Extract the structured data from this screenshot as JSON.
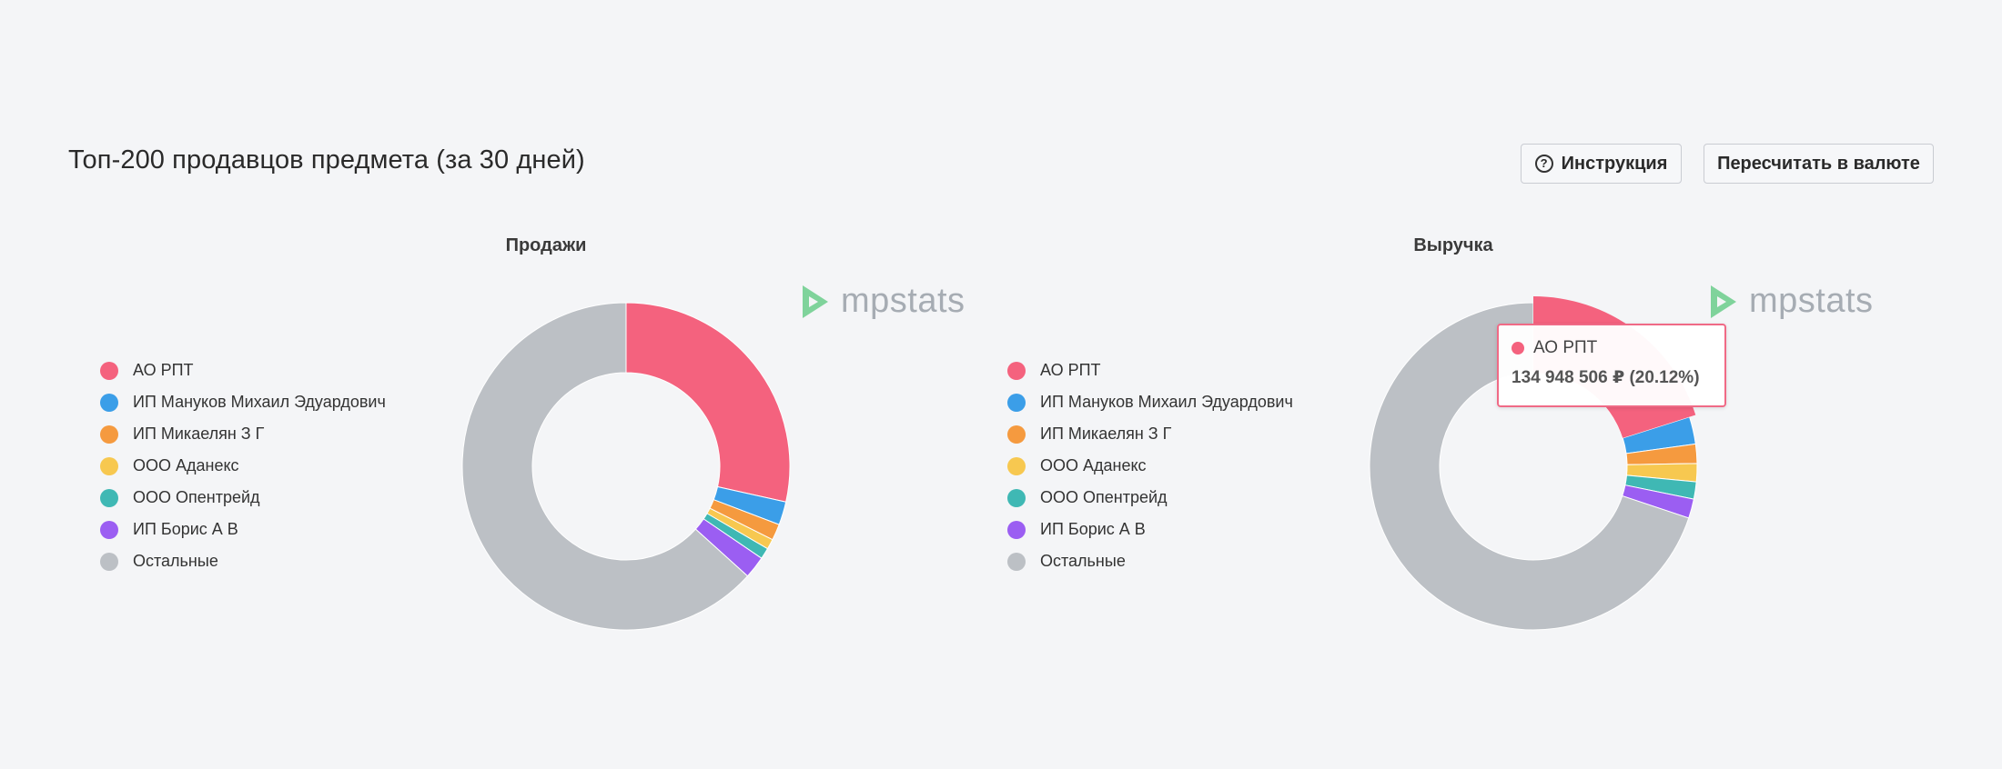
{
  "header": {
    "title": "Топ-200 продавцов предмета (за 30 дней)",
    "help_label": "Инструкция",
    "currency_label": "Пересчитать в валюте",
    "help_glyph": "?"
  },
  "watermark": "mpstats",
  "colors": {
    "ao_rpt": "#f4627e",
    "manukov": "#3b9ee8",
    "mikaelyan": "#f59a3f",
    "adaneks": "#f7c850",
    "opentreid": "#3fb8b4",
    "boris": "#9b5ef2",
    "others": "#bcc0c5",
    "watermark_green": "#7fd39b"
  },
  "chart_data": [
    {
      "type": "pie",
      "title": "Продажи",
      "donut": true,
      "legend_position": "left",
      "series": [
        {
          "name": "АО РПТ",
          "value": 28.5,
          "color": "#f4627e"
        },
        {
          "name": "ИП Мануков Михаил Эдуардович",
          "value": 2.3,
          "color": "#3b9ee8"
        },
        {
          "name": "ИП Микаелян З Г",
          "value": 1.6,
          "color": "#f59a3f"
        },
        {
          "name": "ООО Аданекс",
          "value": 1.0,
          "color": "#f7c850"
        },
        {
          "name": "ООО Опентрейд",
          "value": 1.1,
          "color": "#3fb8b4"
        },
        {
          "name": "ИП Борис А В",
          "value": 2.2,
          "color": "#9b5ef2"
        },
        {
          "name": "Остальные",
          "value": 63.3,
          "color": "#bcc0c5"
        }
      ]
    },
    {
      "type": "pie",
      "title": "Выручка",
      "donut": true,
      "legend_position": "left",
      "series": [
        {
          "name": "АО РПТ",
          "value": 20.12,
          "color": "#f4627e"
        },
        {
          "name": "ИП Мануков Михаил Эдуардович",
          "value": 2.7,
          "color": "#3b9ee8"
        },
        {
          "name": "ИП Микаелян З Г",
          "value": 1.9,
          "color": "#f59a3f"
        },
        {
          "name": "ООО Аданекс",
          "value": 1.8,
          "color": "#f7c850"
        },
        {
          "name": "ООО Опентрейд",
          "value": 1.7,
          "color": "#3fb8b4"
        },
        {
          "name": "ИП Борис А В",
          "value": 1.9,
          "color": "#9b5ef2"
        },
        {
          "name": "Остальные",
          "value": 69.88,
          "color": "#bcc0c5"
        }
      ],
      "tooltip": {
        "series_name": "АО РПТ",
        "value_text": "134 948 506 ₽ (20.12%)",
        "color": "#f4627e"
      }
    }
  ]
}
